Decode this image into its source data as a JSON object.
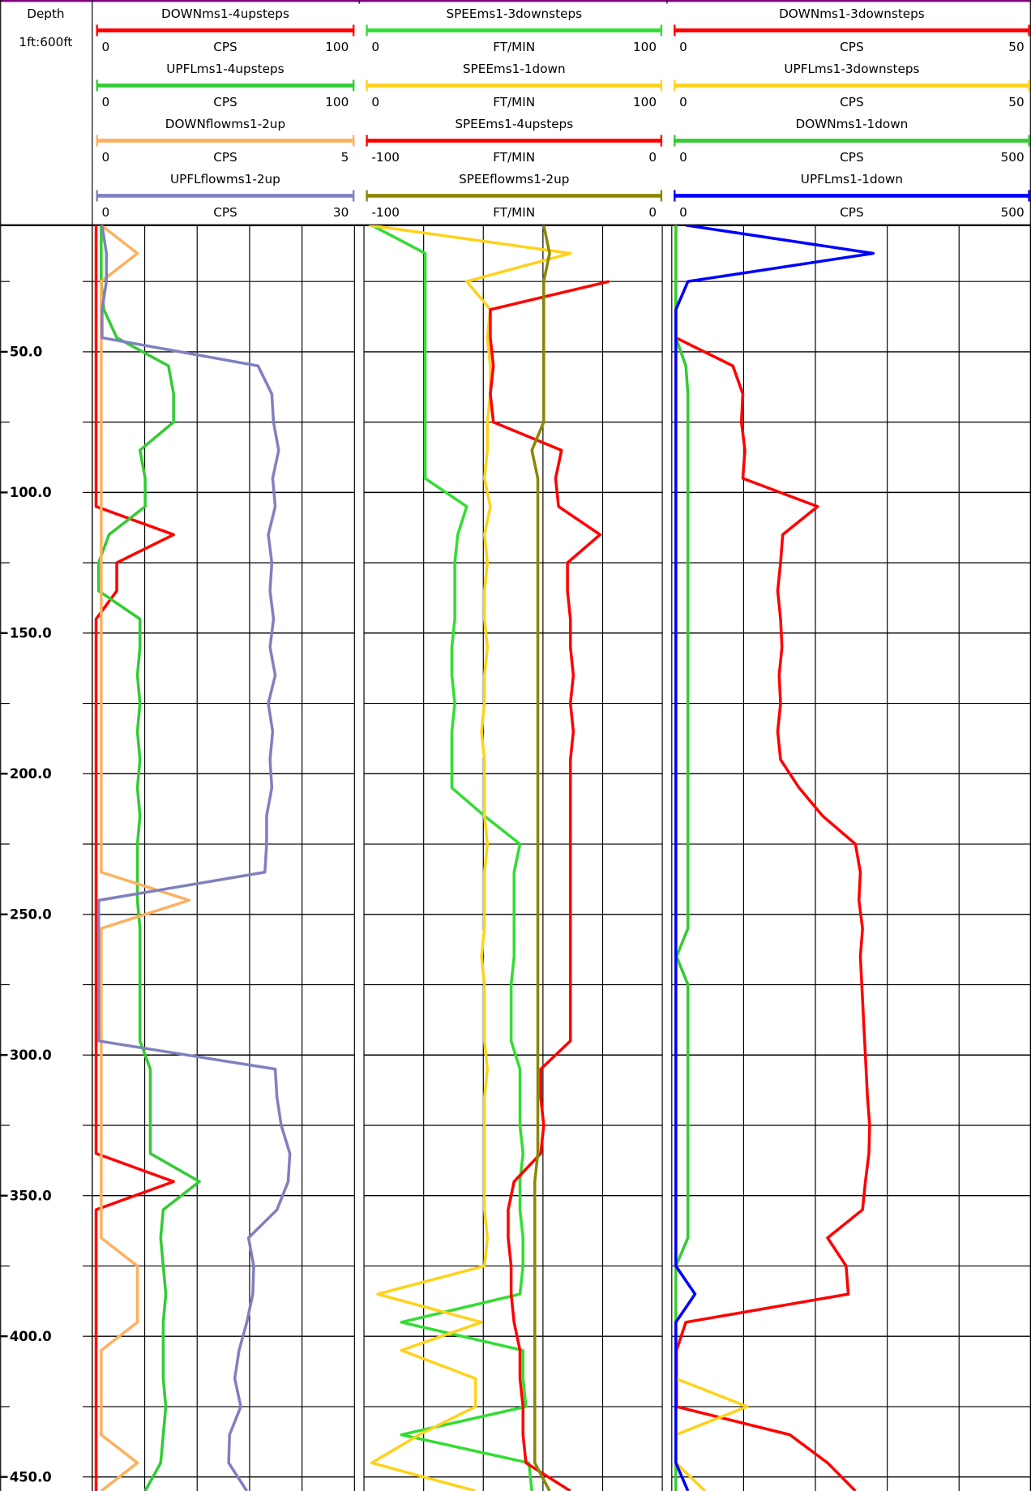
{
  "chart_data": {
    "type": "well-log",
    "depth_title": "Depth",
    "depth_scale": "1ft:600ft",
    "ylim": [
      5,
      455
    ],
    "yticks": [
      {
        "value": 50,
        "label": "50.0"
      },
      {
        "value": 100,
        "label": "100.0"
      },
      {
        "value": 150,
        "label": "150.0"
      },
      {
        "value": 200,
        "label": "200.0"
      },
      {
        "value": 250,
        "label": "250.0"
      },
      {
        "value": 300,
        "label": "300.0"
      },
      {
        "value": 350,
        "label": "350.0"
      },
      {
        "value": 400,
        "label": "400.0"
      },
      {
        "value": 450,
        "label": "450.0"
      }
    ],
    "minor_yticks": [
      25,
      75,
      125,
      175,
      225,
      275,
      325,
      375,
      425
    ],
    "grid": true,
    "vertical_grid_divisions": 5,
    "depth": [
      5,
      15,
      25,
      35,
      45,
      55,
      65,
      75,
      85,
      95,
      105,
      115,
      125,
      135,
      145,
      155,
      165,
      175,
      185,
      195,
      205,
      215,
      225,
      235,
      245,
      255,
      265,
      275,
      285,
      295,
      305,
      315,
      325,
      335,
      345,
      355,
      365,
      375,
      385,
      395,
      405,
      415,
      425,
      435,
      445,
      455
    ],
    "tracks": [
      {
        "series": [
          {
            "name": "DOWNms1-4upsteps",
            "unit": "CPS",
            "color": "#ff0000",
            "xlim": [
              0,
              100
            ],
            "values": [
              0,
              0,
              0,
              0,
              0,
              0,
              0,
              0,
              0,
              0,
              0,
              30,
              8,
              8,
              0,
              0,
              0,
              0,
              0,
              0,
              0,
              0,
              0,
              0,
              0,
              0,
              0,
              0,
              0,
              0,
              0,
              0,
              0,
              0,
              30,
              0,
              0,
              0,
              0,
              0,
              0,
              0,
              0,
              0,
              0,
              0
            ]
          },
          {
            "name": "UPFLms1-4upsteps",
            "unit": "CPS",
            "color": "#33cc33",
            "xlim": [
              0,
              100
            ],
            "values": [
              2,
              2,
              2,
              3,
              8,
              28,
              30,
              30,
              17,
              19,
              19,
              5,
              1,
              1,
              17,
              17,
              16,
              17,
              16,
              17,
              16,
              17,
              16,
              16,
              16,
              17,
              17,
              17,
              17,
              17,
              21,
              21,
              21,
              21,
              40,
              26,
              25,
              26,
              27,
              26,
              26,
              26,
              27,
              26,
              25,
              19
            ]
          },
          {
            "name": "DOWNflowms1-2up",
            "unit": "CPS",
            "color": "#ffb060",
            "xlim": [
              0,
              5
            ],
            "values": [
              0.1,
              0.8,
              0.1,
              0.1,
              0.1,
              0.1,
              0.1,
              0.1,
              0.1,
              0.1,
              0.1,
              0.1,
              0.1,
              0.1,
              0.1,
              0.1,
              0.1,
              0.1,
              0.1,
              0.1,
              0.1,
              0.1,
              0.1,
              0.1,
              1.8,
              0.1,
              0.1,
              0.1,
              0.1,
              0.1,
              0.1,
              0.1,
              0.1,
              0.1,
              0.1,
              0.1,
              0.1,
              0.8,
              0.8,
              0.8,
              0.1,
              0.1,
              0.1,
              0.1,
              0.8,
              0.1
            ]
          },
          {
            "name": "UPFLflowms1-2up",
            "unit": "CPS",
            "color": "#8080c0",
            "xlim": [
              0,
              30
            ],
            "values": [
              0.7,
              1.2,
              1.2,
              0.7,
              0.7,
              18.8,
              20.4,
              20.6,
              21.2,
              20.5,
              20.8,
              20,
              20.4,
              20.2,
              20.6,
              20.2,
              20.8,
              20,
              20.5,
              20.2,
              20.4,
              19.8,
              19.8,
              19.6,
              0.3,
              0.3,
              0.3,
              0.3,
              0.3,
              0.3,
              20.8,
              21,
              21.5,
              22.5,
              22.3,
              21,
              17.7,
              18.3,
              18.2,
              17.5,
              16.6,
              16.1,
              16.8,
              15.5,
              15.4,
              17.5
            ]
          }
        ]
      },
      {
        "series": [
          {
            "name": "SPEEms1-3downsteps",
            "unit": "FT/MIN",
            "color": "#33dd33",
            "xlim": [
              0,
              100
            ],
            "values": [
              2,
              20,
              20,
              20,
              20,
              20,
              20,
              20,
              20,
              20,
              34,
              31,
              30,
              30,
              30,
              29,
              29,
              30,
              29,
              29,
              29,
              40,
              52,
              50,
              50,
              50,
              50,
              49,
              49,
              49,
              52,
              52,
              52,
              53,
              52,
              52,
              53,
              53,
              52,
              12,
              53,
              53,
              54,
              12,
              55,
              56
            ]
          },
          {
            "name": "SPEEms1-1down",
            "unit": "FT/MIN",
            "color": "#ffd21a",
            "xlim": [
              0,
              100
            ],
            "values": [
              1,
              69,
              34,
              42,
              41,
              42,
              42,
              41,
              41,
              40,
              42,
              40,
              41,
              40,
              40,
              41,
              40,
              40,
              39,
              40,
              40,
              40,
              41,
              40,
              40,
              40,
              39,
              40,
              40,
              40,
              41,
              40,
              40,
              40,
              40,
              40,
              41,
              40,
              4,
              39,
              12,
              37,
              37,
              18,
              2,
              37
            ]
          },
          {
            "name": "SPEEms1-4upsteps",
            "unit": "FT/MIN",
            "color": "#ff0000",
            "xlim": [
              -100,
              0
            ],
            "values": [
              null,
              null,
              -18,
              -58,
              -58,
              -57,
              -58,
              -57,
              -34,
              -36,
              -35,
              -21,
              -32,
              -32,
              -31,
              -31,
              -30,
              -31,
              -30,
              -31,
              -31,
              -31,
              -31,
              -31,
              -31,
              -31,
              -31,
              -31,
              -31,
              -31,
              -41,
              -41,
              -40,
              -41,
              -50,
              -52,
              -52,
              -51,
              -51,
              -50,
              -48,
              -48,
              -47,
              -47,
              -46,
              -31
            ]
          },
          {
            "name": "SPEEflowms1-2up",
            "unit": "FT/MIN",
            "color": "#888800",
            "xlim": [
              -100,
              0
            ],
            "values": [
              -40,
              -38,
              -40,
              -40,
              -40,
              -40,
              -40,
              -40,
              -44,
              -42,
              -42,
              -42,
              -42,
              -42,
              -42,
              -42,
              -42,
              -42,
              -42,
              -42,
              -42,
              -42,
              -42,
              -42,
              -42,
              -42,
              -42,
              -42,
              -42,
              -42,
              -42,
              -42,
              -42,
              -42,
              -43,
              -43,
              -43,
              -43,
              -43,
              -43,
              -43,
              -43,
              -43,
              -43,
              -43,
              -38
            ]
          }
        ]
      },
      {
        "series": [
          {
            "name": "DOWNms1-3downsteps",
            "unit": "CPS",
            "color": "#ff0000",
            "xlim": [
              0,
              50
            ],
            "values": [
              0.3,
              0.3,
              0.3,
              0.3,
              0.3,
              8.3,
              9.7,
              9.5,
              10,
              9.7,
              20.2,
              15.3,
              15,
              14.6,
              15,
              15.2,
              14.8,
              15,
              14.6,
              15,
              17.6,
              20.9,
              25.5,
              26.2,
              26,
              26.5,
              26.2,
              26.4,
              26.6,
              26.8,
              27,
              27.2,
              27.5,
              27.4,
              26.9,
              26.5,
              21.6,
              24.2,
              24.5,
              1.7,
              0.4,
              0.4,
              0.4,
              16.3,
              21.6,
              25.5
            ]
          },
          {
            "name": "UPFLms1-3downsteps",
            "unit": "CPS",
            "color": "#ffd21a",
            "xlim": [
              0,
              50
            ],
            "values": [
              0.3,
              0.3,
              0.3,
              0.3,
              0.3,
              0.3,
              0.3,
              0.3,
              0.3,
              0.3,
              0.3,
              0.3,
              0.3,
              0.3,
              0.3,
              0.3,
              0.3,
              0.3,
              0.3,
              0.3,
              0.3,
              0.3,
              0.3,
              0.3,
              0.3,
              0.3,
              0.3,
              0.3,
              0.3,
              0.3,
              0.3,
              0.3,
              0.3,
              0.3,
              0.3,
              0.3,
              0.3,
              0.3,
              0.3,
              0.3,
              0.3,
              0.3,
              10.3,
              0.3,
              0.3,
              4.4
            ]
          },
          {
            "name": "DOWNms1-1down",
            "unit": "CPS",
            "color": "#33cc33",
            "xlim": [
              0,
              500
            ],
            "values": [
              3,
              3,
              3,
              3,
              3,
              17,
              20,
              20,
              20,
              20,
              20,
              20,
              20,
              20,
              20,
              20,
              20,
              20,
              20,
              20,
              20,
              20,
              20,
              20,
              20,
              20,
              4,
              20,
              20,
              20,
              20,
              20,
              20,
              20,
              20,
              20,
              20,
              3,
              3,
              3,
              3,
              3,
              3,
              3,
              3,
              3
            ]
          },
          {
            "name": "UPFLms1-1down",
            "unit": "CPS",
            "color": "#0000ff",
            "xlim": [
              0,
              500
            ],
            "values": [
              17,
              280,
              20,
              3,
              3,
              3,
              3,
              3,
              3,
              3,
              3,
              3,
              3,
              3,
              3,
              3,
              3,
              3,
              3,
              3,
              3,
              3,
              3,
              3,
              3,
              3,
              3,
              3,
              3,
              3,
              3,
              3,
              3,
              3,
              3,
              3,
              3,
              3,
              30,
              3,
              3,
              3,
              3,
              3,
              3,
              20
            ]
          }
        ]
      }
    ]
  }
}
